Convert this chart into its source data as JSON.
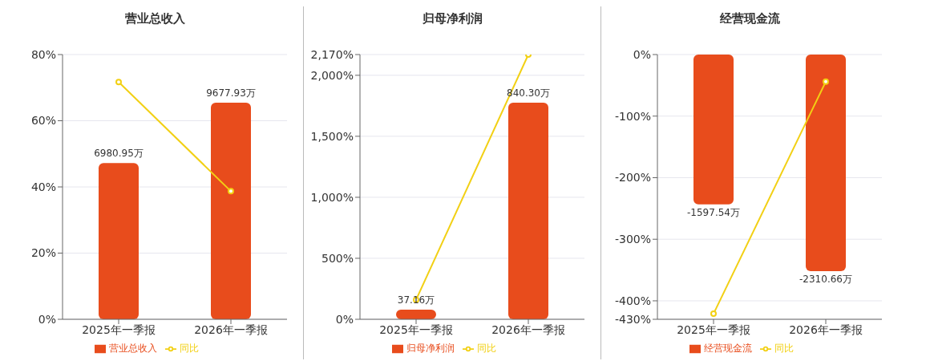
{
  "chart_data": [
    {
      "type": "bar",
      "title": "营业总收入",
      "categories": [
        "2025年一季报",
        "2026年一季报"
      ],
      "ylim": [
        0,
        80
      ],
      "yticks": [
        {
          "value": 0,
          "label": "0%"
        },
        {
          "value": 20,
          "label": "20%"
        },
        {
          "value": 40,
          "label": "40%"
        },
        {
          "value": 60,
          "label": "60%"
        },
        {
          "value": 80,
          "label": "80%"
        }
      ],
      "grid": "y",
      "legend": "bottom",
      "marker": "circle",
      "series": [
        {
          "name": "营业总收入",
          "type": "bar",
          "axis": "y2",
          "color": "#e84c1c",
          "values": [
            6980.95,
            9677.93
          ],
          "value_labels": [
            "6980.95万",
            "9677.93万"
          ]
        },
        {
          "name": "同比",
          "type": "line",
          "color": "#f2d014",
          "values": [
            71.7,
            38.7
          ]
        }
      ]
    },
    {
      "type": "bar",
      "title": "归母净利润",
      "categories": [
        "2025年一季报",
        "2026年一季报"
      ],
      "ylim": [
        0,
        2170
      ],
      "yticks": [
        {
          "value": 0,
          "label": "0%"
        },
        {
          "value": 500,
          "label": "500%"
        },
        {
          "value": 1000,
          "label": "1,000%"
        },
        {
          "value": 1500,
          "label": "1,500%"
        },
        {
          "value": 2000,
          "label": "2,000%"
        },
        {
          "value": 2170,
          "label": "2,170%"
        }
      ],
      "grid": "y",
      "legend": "bottom",
      "marker": "circle",
      "series": [
        {
          "name": "归母净利润",
          "type": "bar",
          "axis": "y2",
          "color": "#e84c1c",
          "values": [
            37.16,
            840.3
          ],
          "value_labels": [
            "37.16万",
            "840.30万"
          ]
        },
        {
          "name": "同比",
          "type": "line",
          "color": "#f2d014",
          "values": [
            160,
            2170
          ]
        }
      ]
    },
    {
      "type": "bar",
      "title": "经营现金流",
      "categories": [
        "2025年一季报",
        "2026年一季报"
      ],
      "ylim": [
        -430,
        0
      ],
      "yticks": [
        {
          "value": -430,
          "label": "-430%"
        },
        {
          "value": -400,
          "label": "-400%"
        },
        {
          "value": -300,
          "label": "-300%"
        },
        {
          "value": -200,
          "label": "-200%"
        },
        {
          "value": -100,
          "label": "-100%"
        },
        {
          "value": 0,
          "label": "0%"
        }
      ],
      "grid": "y",
      "legend": "bottom",
      "marker": "circle",
      "series": [
        {
          "name": "经营现金流",
          "type": "bar",
          "axis": "y2",
          "color": "#e84c1c",
          "values": [
            -1597.54,
            -2310.66
          ],
          "value_labels": [
            "-1597.54万",
            "-2310.66万"
          ]
        },
        {
          "name": "同比",
          "type": "line",
          "color": "#f2d014",
          "values": [
            -421,
            -44
          ]
        }
      ]
    }
  ]
}
